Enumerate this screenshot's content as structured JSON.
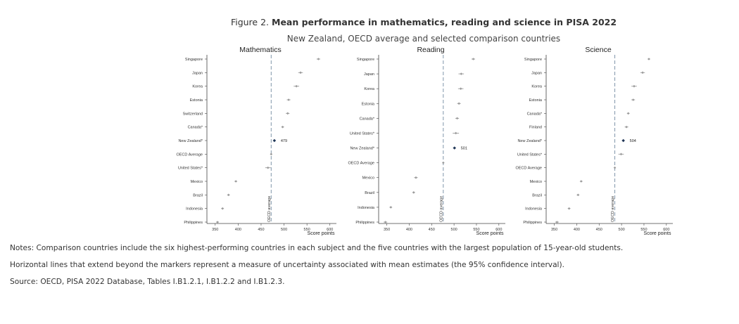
{
  "figure": {
    "label": "Figure 2.",
    "title": "Mean performance in mathematics, reading and science in PISA 2022",
    "subtitle": "New Zealand, OECD average and selected comparison countries"
  },
  "notes": [
    "Notes: Comparison countries include the six highest-performing countries in each subject and the five countries with the largest population of 15-year-old students.",
    "Horizontal lines that extend beyond the markers represent a measure of uncertainty associated with mean estimates (the 95% confidence interval).",
    "Source: OECD, PISA 2022 Database, Tables I.B1.2.1, I.B1.2.2 and I.B1.2.3."
  ],
  "colors": {
    "marker": "#9a9a9a",
    "highlight": "#1f3556",
    "oecd_line": "#7f95aa",
    "axis": "#444444"
  },
  "chart_data": [
    {
      "type": "scatter",
      "title": "Mathematics",
      "xlabel": "Score points",
      "xlim": [
        335,
        605
      ],
      "xticks": [
        350,
        400,
        450,
        500,
        550,
        600
      ],
      "reference_line": {
        "value": 472,
        "label": "OECD average"
      },
      "highlight": {
        "category": "New Zealand*",
        "label": "479"
      },
      "categories": [
        "Singapore",
        "Japan",
        "Korea",
        "Estonia",
        "Switzerland",
        "Canada*",
        "New Zealand*",
        "OECD Average",
        "United States*",
        "Mexico",
        "Brazil",
        "Indonesia",
        "Philippines"
      ],
      "values": [
        575,
        536,
        527,
        510,
        508,
        497,
        479,
        472,
        465,
        395,
        379,
        366,
        355
      ],
      "ci_half": [
        4,
        5,
        6,
        4,
        4,
        3,
        3,
        1,
        6,
        3,
        3,
        3,
        3
      ]
    },
    {
      "type": "scatter",
      "title": "Reading",
      "xlabel": "Score points",
      "xlim": [
        335,
        605
      ],
      "xticks": [
        350,
        400,
        450,
        500,
        550,
        600
      ],
      "reference_line": {
        "value": 476,
        "label": "OECD average"
      },
      "highlight": {
        "category": "New Zealand*",
        "label": "501"
      },
      "categories": [
        "Singapore",
        "Japan",
        "Korea",
        "Estonia",
        "Canada*",
        "United States*",
        "New Zealand*",
        "OECD Average",
        "Mexico",
        "Brazil",
        "Indonesia",
        "Philippines"
      ],
      "values": [
        543,
        516,
        515,
        511,
        507,
        504,
        501,
        476,
        415,
        410,
        359,
        347
      ],
      "ci_half": [
        4,
        6,
        6,
        4,
        4,
        7,
        3,
        1,
        4,
        3,
        3,
        4
      ]
    },
    {
      "type": "scatter",
      "title": "Science",
      "xlabel": "Score points",
      "xlim": [
        335,
        605
      ],
      "xticks": [
        350,
        400,
        450,
        500,
        550,
        600
      ],
      "reference_line": {
        "value": 485,
        "label": "OECD average"
      },
      "highlight": {
        "category": "New Zealand*",
        "label": "504"
      },
      "categories": [
        "Singapore",
        "Japan",
        "Korea",
        "Estonia",
        "Canada*",
        "Finland",
        "New Zealand*",
        "United States*",
        "OECD Average",
        "Mexico",
        "Brazil",
        "Indonesia",
        "Philippines"
      ],
      "values": [
        561,
        547,
        528,
        526,
        515,
        511,
        504,
        499,
        485,
        410,
        403,
        383,
        356
      ],
      "ci_half": [
        3,
        5,
        6,
        4,
        3,
        4,
        3,
        6,
        1,
        3,
        3,
        3,
        4
      ]
    }
  ]
}
